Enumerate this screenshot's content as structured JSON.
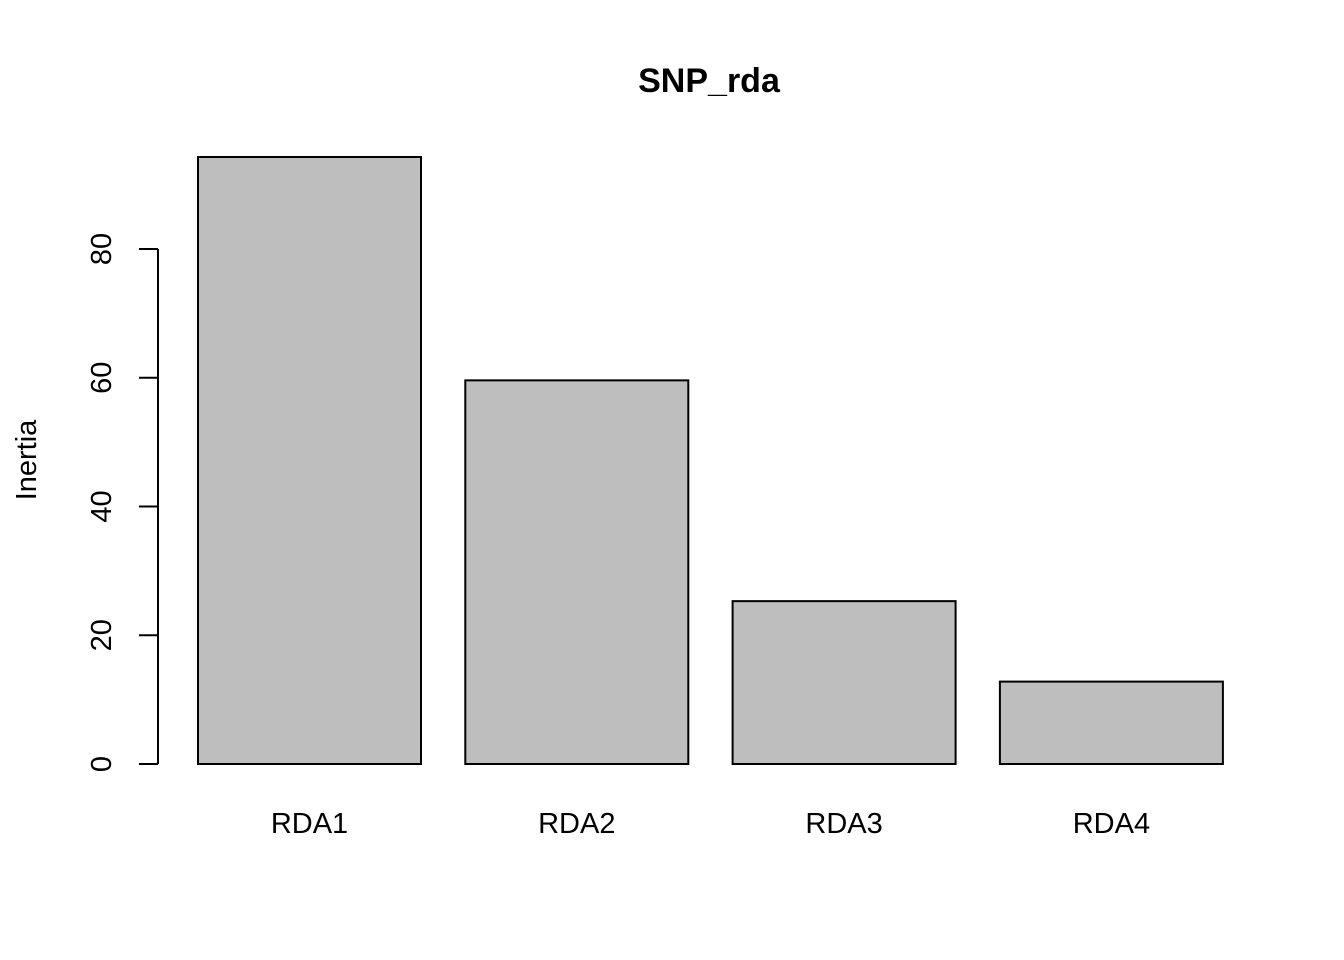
{
  "chart_data": {
    "type": "bar",
    "title": "SNP_rda",
    "xlabel": "",
    "ylabel": "Inertia",
    "categories": [
      "RDA1",
      "RDA2",
      "RDA3",
      "RDA4"
    ],
    "values": [
      94.3,
      59.6,
      25.3,
      12.8
    ],
    "ylim": [
      0,
      94.3
    ],
    "yticks": [
      0,
      20,
      40,
      60,
      80
    ],
    "grid": false,
    "legend": "none",
    "bar_color": "#bebebe",
    "edge_color": "#000000"
  }
}
